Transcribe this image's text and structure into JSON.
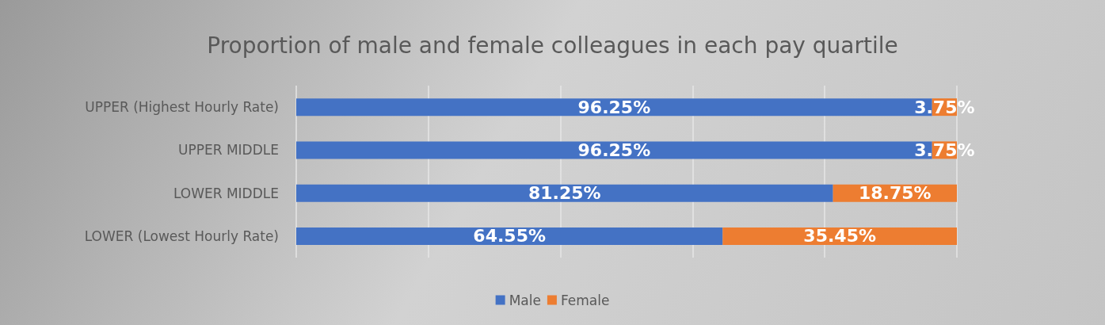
{
  "chart_data": {
    "type": "bar",
    "title": "Proportion of male and female colleagues in each pay quartile",
    "orientation": "horizontal",
    "stacked": true,
    "categories": [
      "UPPER (Highest Hourly Rate)",
      "UPPER MIDDLE",
      "LOWER MIDDLE",
      "LOWER (Lowest Hourly Rate)"
    ],
    "series": [
      {
        "name": "Male",
        "color": "#4472c4",
        "values": [
          96.25,
          96.25,
          81.25,
          64.55
        ],
        "value_labels": [
          "96.25%",
          "96.25%",
          "81.25%",
          "64.55%"
        ]
      },
      {
        "name": "Female",
        "color": "#ed7d31",
        "values": [
          3.75,
          3.75,
          18.75,
          35.45
        ],
        "value_labels": [
          "3.75%",
          "3.75%",
          "18.75%",
          "35.45%"
        ]
      }
    ],
    "xlim": [
      0,
      100
    ],
    "xticks": [
      {
        "value": 0,
        "label": null
      },
      {
        "value": 20,
        "label": null
      },
      {
        "value": 40,
        "label": null
      },
      {
        "value": 60,
        "label": null
      },
      {
        "value": 80,
        "label": null
      },
      {
        "value": 100,
        "label": null
      }
    ],
    "tick_labels": "y",
    "grid": "x",
    "legend": "bottom"
  }
}
